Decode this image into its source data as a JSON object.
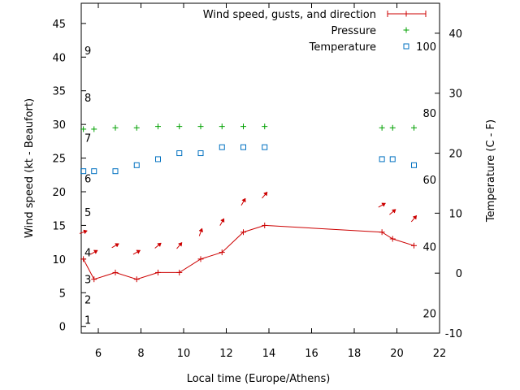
{
  "chart_data": {
    "type": "line",
    "title": "",
    "xlabel": "Local time (Europe/Athens)",
    "ylabel_left": "Wind speed (kt - Beaufort)",
    "ylabel_right": "Temperature (C - F)",
    "xlim": [
      5.2,
      22
    ],
    "ylim_left": [
      -1,
      48
    ],
    "ylim_right": [
      -10,
      45
    ],
    "grid": false,
    "legend_position": "top-right",
    "x_ticks": [
      6,
      8,
      10,
      12,
      14,
      16,
      18,
      20,
      22
    ],
    "y_left_ticks": [
      0,
      5,
      10,
      15,
      20,
      25,
      30,
      35,
      40,
      45
    ],
    "y_right_ticks": [
      -10,
      0,
      10,
      20,
      30,
      40
    ],
    "beaufort_labels": [
      {
        "label": "1",
        "kt": 1
      },
      {
        "label": "2",
        "kt": 4
      },
      {
        "label": "3",
        "kt": 7
      },
      {
        "label": "4",
        "kt": 11
      },
      {
        "label": "5",
        "kt": 17
      },
      {
        "label": "6",
        "kt": 22
      },
      {
        "label": "7",
        "kt": 28
      },
      {
        "label": "8",
        "kt": 34
      },
      {
        "label": "9",
        "kt": 41
      }
    ],
    "fahrenheit_labels": [
      {
        "label": "20",
        "celsius": -6.7
      },
      {
        "label": "40",
        "celsius": 4.4
      },
      {
        "label": "60",
        "celsius": 15.6
      },
      {
        "label": "80",
        "celsius": 26.7
      },
      {
        "label": "100",
        "celsius": 37.8
      }
    ],
    "series": [
      {
        "name": "Wind speed, gusts, and direction",
        "axis": "left",
        "color": "#cc0000",
        "marker": "plus-line",
        "x": [
          5.3,
          5.8,
          6.8,
          7.8,
          8.8,
          9.8,
          10.8,
          11.8,
          12.8,
          13.8,
          19.3,
          19.8,
          20.8
        ],
        "y": [
          10,
          7,
          8,
          7,
          8,
          8,
          10,
          11,
          14,
          15,
          14,
          13,
          12
        ]
      },
      {
        "name": "Pressure",
        "axis": "left",
        "color": "#00a000",
        "marker": "plus",
        "x": [
          5.3,
          5.8,
          6.8,
          7.8,
          8.8,
          9.8,
          10.8,
          11.8,
          12.8,
          13.8,
          19.3,
          19.8,
          20.8
        ],
        "y": [
          29.3,
          29.3,
          29.5,
          29.5,
          29.7,
          29.7,
          29.7,
          29.7,
          29.7,
          29.7,
          29.5,
          29.5,
          29.5
        ]
      },
      {
        "name": "Temperature",
        "axis": "right",
        "color": "#0070c0",
        "marker": "square",
        "x": [
          5.3,
          5.8,
          6.8,
          7.8,
          8.8,
          9.8,
          10.8,
          11.8,
          12.8,
          13.8,
          19.3,
          19.8,
          20.8
        ],
        "y": [
          17,
          17,
          17,
          18,
          19,
          20,
          20,
          21,
          21,
          21,
          19,
          19,
          18
        ]
      }
    ],
    "gust_arrows": {
      "color": "#cc0000",
      "x": [
        5.3,
        5.8,
        6.8,
        7.8,
        8.8,
        9.8,
        10.8,
        11.8,
        12.8,
        13.8,
        19.3,
        19.8,
        20.8
      ],
      "y": [
        14,
        11,
        12,
        11,
        12,
        12,
        14,
        15.5,
        18.5,
        19.5,
        18,
        17,
        16
      ],
      "direction_deg": [
        250,
        240,
        240,
        240,
        230,
        220,
        200,
        210,
        210,
        220,
        240,
        230,
        220
      ]
    }
  }
}
